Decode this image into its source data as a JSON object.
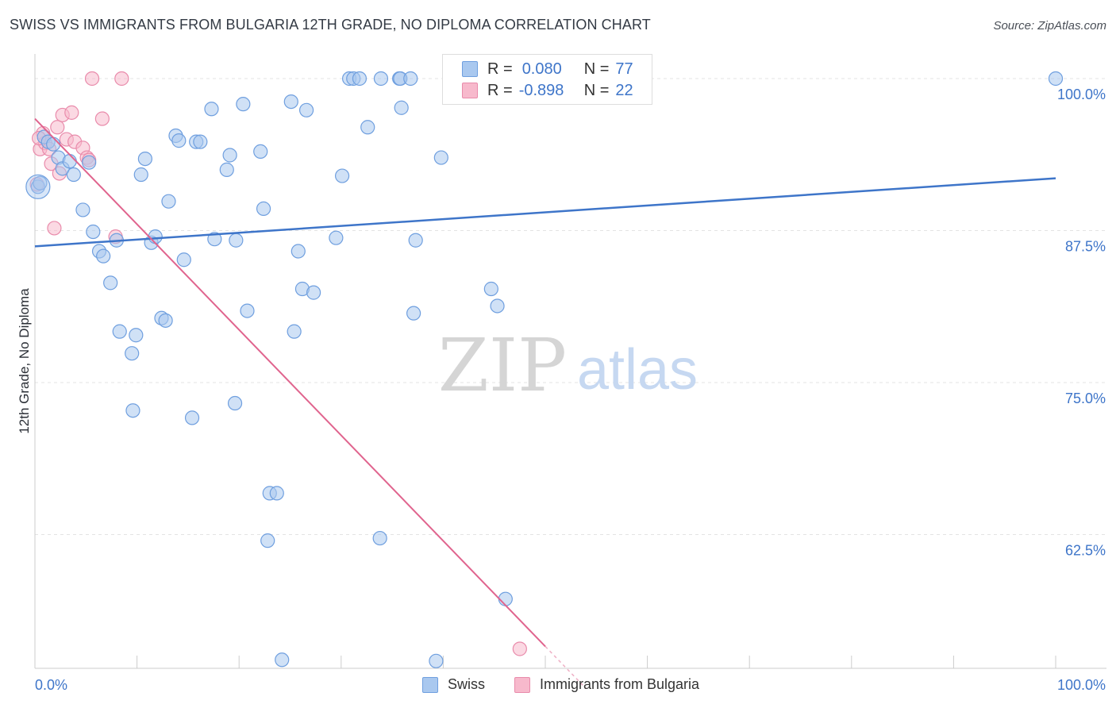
{
  "title": "SWISS VS IMMIGRANTS FROM BULGARIA 12TH GRADE, NO DIPLOMA CORRELATION CHART",
  "source": "Source: ZipAtlas.com",
  "watermark": {
    "zip": "ZIP",
    "atlas": "atlas"
  },
  "legend_stats": [
    {
      "r_label": "R =",
      "r_value": "0.080",
      "n_label": "N =",
      "n_value": "77"
    },
    {
      "r_label": "R =",
      "r_value": "-0.898",
      "n_label": "N =",
      "n_value": "22"
    }
  ],
  "colors": {
    "swiss_fill": "#a9c8ef",
    "swiss_stroke": "#6f9fdf",
    "swiss_line": "#3e75c9",
    "bulgaria_fill": "#f7b9cc",
    "bulgaria_stroke": "#e98bab",
    "bulgaria_line": "#e0648e",
    "axis_text": "#3e75c9",
    "grid": "#e3e3e3"
  },
  "chart_data": {
    "type": "scatter",
    "title": "SWISS VS IMMIGRANTS FROM BULGARIA 12TH GRADE, NO DIPLOMA CORRELATION CHART",
    "xlabel": "",
    "ylabel": "12th Grade, No Diploma",
    "xlim": [
      0,
      100
    ],
    "ylim": [
      51.5,
      101.5
    ],
    "x_tick_labels": [
      "0.0%",
      "100.0%"
    ],
    "y_ticks": [
      100,
      87.5,
      75,
      62.5
    ],
    "y_tick_labels": [
      "100.0%",
      "87.5%",
      "75.0%",
      "62.5%"
    ],
    "grid": true,
    "legend_position": "bottom-center",
    "series": [
      {
        "name": "Swiss",
        "r": 0.08,
        "n": 77,
        "trend": {
          "x": [
            0,
            100
          ],
          "y": [
            86.2,
            91.8
          ]
        },
        "points": [
          [
            0.3,
            91.1
          ],
          [
            0.5,
            91.4
          ],
          [
            0.9,
            95.2
          ],
          [
            1.3,
            94.8
          ],
          [
            1.8,
            94.6
          ],
          [
            2.3,
            93.5
          ],
          [
            2.7,
            92.6
          ],
          [
            3.4,
            93.2
          ],
          [
            3.8,
            92.1
          ],
          [
            4.7,
            89.2
          ],
          [
            5.3,
            93.1
          ],
          [
            5.7,
            87.4
          ],
          [
            6.3,
            85.8
          ],
          [
            6.7,
            85.4
          ],
          [
            7.4,
            83.2
          ],
          [
            8.0,
            86.7
          ],
          [
            8.3,
            79.2
          ],
          [
            9.5,
            77.4
          ],
          [
            9.6,
            72.7
          ],
          [
            9.9,
            78.9
          ],
          [
            10.4,
            92.1
          ],
          [
            10.8,
            93.4
          ],
          [
            11.4,
            86.5
          ],
          [
            11.8,
            87.0
          ],
          [
            12.4,
            80.3
          ],
          [
            12.8,
            80.1
          ],
          [
            13.1,
            89.9
          ],
          [
            13.8,
            95.3
          ],
          [
            14.1,
            94.9
          ],
          [
            14.6,
            85.1
          ],
          [
            15.4,
            72.1
          ],
          [
            15.8,
            94.8
          ],
          [
            16.2,
            94.8
          ],
          [
            17.3,
            97.5
          ],
          [
            17.6,
            86.8
          ],
          [
            18.8,
            92.5
          ],
          [
            19.1,
            93.7
          ],
          [
            19.6,
            73.3
          ],
          [
            19.7,
            86.7
          ],
          [
            20.4,
            97.9
          ],
          [
            20.8,
            80.9
          ],
          [
            22.1,
            94.0
          ],
          [
            22.4,
            89.3
          ],
          [
            22.8,
            62.0
          ],
          [
            23.0,
            65.9
          ],
          [
            23.7,
            65.9
          ],
          [
            24.2,
            52.2
          ],
          [
            25.1,
            98.1
          ],
          [
            25.4,
            79.2
          ],
          [
            25.8,
            85.8
          ],
          [
            26.2,
            82.7
          ],
          [
            26.6,
            97.4
          ],
          [
            27.3,
            82.4
          ],
          [
            29.5,
            86.9
          ],
          [
            30.1,
            92.0
          ],
          [
            30.8,
            100.0
          ],
          [
            31.2,
            100.0
          ],
          [
            31.8,
            100.0
          ],
          [
            32.6,
            96.0
          ],
          [
            33.8,
            62.2
          ],
          [
            33.9,
            100.0
          ],
          [
            35.7,
            100.0
          ],
          [
            35.8,
            100.0
          ],
          [
            35.9,
            97.6
          ],
          [
            36.8,
            100.0
          ],
          [
            37.1,
            80.7
          ],
          [
            37.3,
            86.7
          ],
          [
            39.3,
            52.1
          ],
          [
            39.8,
            93.5
          ],
          [
            41.3,
            100.0
          ],
          [
            44.7,
            82.7
          ],
          [
            45.3,
            81.3
          ],
          [
            46.1,
            57.2
          ],
          [
            47.3,
            100.0
          ],
          [
            48.2,
            100.0
          ],
          [
            50.2,
            100.0
          ],
          [
            100.0,
            100.0
          ]
        ]
      },
      {
        "name": "Immigrants from Bulgaria",
        "r": -0.898,
        "n": 22,
        "trend": {
          "x": [
            0,
            50
          ],
          "y": [
            96.7,
            53.3
          ]
        },
        "points": [
          [
            0.2,
            91.3
          ],
          [
            0.5,
            94.2
          ],
          [
            0.8,
            95.5
          ],
          [
            1.0,
            94.7
          ],
          [
            1.4,
            94.2
          ],
          [
            1.6,
            93.0
          ],
          [
            1.9,
            87.7
          ],
          [
            2.2,
            96.0
          ],
          [
            2.4,
            92.2
          ],
          [
            2.7,
            97.0
          ],
          [
            3.1,
            95.0
          ],
          [
            3.6,
            97.2
          ],
          [
            3.9,
            94.8
          ],
          [
            4.7,
            94.3
          ],
          [
            5.1,
            93.5
          ],
          [
            5.3,
            93.3
          ],
          [
            5.6,
            100.0
          ],
          [
            6.6,
            96.7
          ],
          [
            7.9,
            87.0
          ],
          [
            8.5,
            100.0
          ],
          [
            47.5,
            53.1
          ],
          [
            0.4,
            95.1
          ]
        ]
      }
    ]
  }
}
